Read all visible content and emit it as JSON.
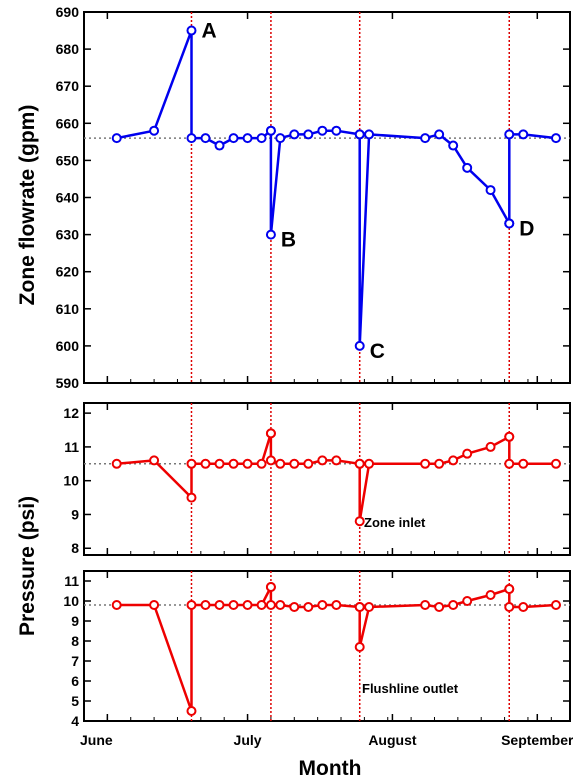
{
  "chart_data": [
    {
      "type": "line",
      "ylabel": "Zone flowrate (gpm)",
      "ylim": [
        590,
        690
      ],
      "yticks": [
        590,
        600,
        610,
        620,
        630,
        640,
        650,
        660,
        670,
        680,
        690
      ],
      "color": "#0000ee",
      "baseline": 656,
      "events": [
        {
          "label": "A",
          "date": "2006-06-19"
        },
        {
          "label": "B",
          "date": "2006-07-06"
        },
        {
          "label": "C",
          "date": "2006-07-25"
        },
        {
          "label": "D",
          "date": "2006-08-26"
        }
      ],
      "series": [
        {
          "x": [
            "2006-06-03",
            "2006-06-11",
            "2006-06-19",
            "2006-06-19",
            "2006-06-22",
            "2006-06-25",
            "2006-06-28",
            "2006-07-01",
            "2006-07-04",
            "2006-07-06"
          ],
          "y": [
            656,
            658,
            685,
            656,
            656,
            654,
            656,
            656,
            656,
            658
          ]
        },
        {
          "x": [
            "2006-07-06",
            "2006-07-06",
            "2006-07-08",
            "2006-07-11",
            "2006-07-14",
            "2006-07-17",
            "2006-07-20",
            "2006-07-25"
          ],
          "y": [
            658,
            630,
            656,
            657,
            657,
            658,
            658,
            657
          ]
        },
        {
          "x": [
            "2006-07-25",
            "2006-07-25",
            "2006-07-27",
            "2006-08-08",
            "2006-08-11",
            "2006-08-14",
            "2006-08-17",
            "2006-08-22",
            "2006-08-26"
          ],
          "y": [
            657,
            600,
            657,
            656,
            657,
            654,
            648,
            642,
            633
          ]
        },
        {
          "x": [
            "2006-08-26",
            "2006-08-26",
            "2006-08-29",
            "2006-09-05"
          ],
          "y": [
            633,
            657,
            657,
            656
          ]
        }
      ]
    },
    {
      "type": "line",
      "ylabel": "Pressure (psi)",
      "ylim": [
        7.8,
        12.3
      ],
      "yticks": [
        8,
        9,
        10,
        11,
        12
      ],
      "color": "#ee0000",
      "baseline": 10.5,
      "annotation": "Zone inlet",
      "series": [
        {
          "x": [
            "2006-06-03",
            "2006-06-11",
            "2006-06-19",
            "2006-06-19",
            "2006-06-22",
            "2006-06-25",
            "2006-06-28",
            "2006-07-01",
            "2006-07-04",
            "2006-07-06"
          ],
          "y": [
            10.5,
            10.6,
            9.5,
            10.5,
            10.5,
            10.5,
            10.5,
            10.5,
            10.5,
            11.4
          ]
        },
        {
          "x": [
            "2006-07-06",
            "2006-07-06",
            "2006-07-08",
            "2006-07-11",
            "2006-07-14",
            "2006-07-17",
            "2006-07-20",
            "2006-07-25"
          ],
          "y": [
            11.4,
            10.6,
            10.5,
            10.5,
            10.5,
            10.6,
            10.6,
            10.5
          ]
        },
        {
          "x": [
            "2006-07-25",
            "2006-07-25",
            "2006-07-27",
            "2006-08-08",
            "2006-08-11",
            "2006-08-14",
            "2006-08-17",
            "2006-08-22",
            "2006-08-26"
          ],
          "y": [
            10.5,
            8.8,
            10.5,
            10.5,
            10.5,
            10.6,
            10.8,
            11.0,
            11.3
          ]
        },
        {
          "x": [
            "2006-08-26",
            "2006-08-26",
            "2006-08-29",
            "2006-09-05"
          ],
          "y": [
            11.3,
            10.5,
            10.5,
            10.5
          ]
        }
      ]
    },
    {
      "type": "line",
      "ylabel": "Pressure (psi)",
      "ylim": [
        4,
        11.5
      ],
      "yticks": [
        4,
        5,
        6,
        7,
        8,
        9,
        10,
        11
      ],
      "color": "#ee0000",
      "baseline": 9.8,
      "annotation": "Flushline outlet",
      "series": [
        {
          "x": [
            "2006-06-03",
            "2006-06-11",
            "2006-06-19",
            "2006-06-19",
            "2006-06-22",
            "2006-06-25",
            "2006-06-28",
            "2006-07-01",
            "2006-07-04",
            "2006-07-06"
          ],
          "y": [
            9.8,
            9.8,
            4.5,
            9.8,
            9.8,
            9.8,
            9.8,
            9.8,
            9.8,
            10.7
          ]
        },
        {
          "x": [
            "2006-07-06",
            "2006-07-06",
            "2006-07-08",
            "2006-07-11",
            "2006-07-14",
            "2006-07-17",
            "2006-07-20",
            "2006-07-25"
          ],
          "y": [
            10.7,
            9.8,
            9.8,
            9.7,
            9.7,
            9.8,
            9.8,
            9.7
          ]
        },
        {
          "x": [
            "2006-07-25",
            "2006-07-25",
            "2006-07-27",
            "2006-08-08",
            "2006-08-11",
            "2006-08-14",
            "2006-08-17",
            "2006-08-22",
            "2006-08-26"
          ],
          "y": [
            9.7,
            7.7,
            9.7,
            9.8,
            9.7,
            9.8,
            10.0,
            10.3,
            10.6
          ]
        },
        {
          "x": [
            "2006-08-26",
            "2006-08-26",
            "2006-08-29",
            "2006-09-05"
          ],
          "y": [
            10.6,
            9.7,
            9.7,
            9.8
          ]
        }
      ]
    }
  ],
  "xaxis": {
    "label": "Month",
    "tick_labels": [
      "June",
      "July",
      "August",
      "September"
    ],
    "tick_dates": [
      "2006-06-01",
      "2006-07-01",
      "2006-08-01",
      "2006-09-01"
    ],
    "xlim": [
      "2006-05-27",
      "2006-09-08"
    ]
  },
  "pressure_axis_label": "Pressure (psi)",
  "colors": {
    "flow": "#0000ee",
    "pressure": "#ee0000",
    "event_line": "#dd0000",
    "baseline": "#777777"
  }
}
